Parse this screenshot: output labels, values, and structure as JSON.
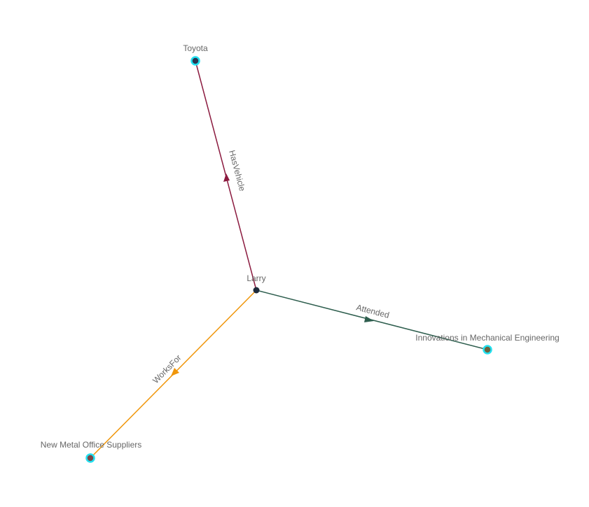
{
  "graph": {
    "nodes": [
      {
        "id": "larry",
        "label": "Larry",
        "fill": "#1e2a3a",
        "ring": null
      },
      {
        "id": "toyota",
        "label": "Toyota",
        "fill": "#2a3550",
        "ring": "#22e0f0"
      },
      {
        "id": "innovations",
        "label": "Innovations in Mechanical Engineering",
        "fill": "#6b6440",
        "ring": "#22e0f0"
      },
      {
        "id": "newmetal",
        "label": "New Metal Office Suppliers",
        "fill": "#7a4848",
        "ring": "#22e0f0"
      }
    ],
    "edges": [
      {
        "source": "larry",
        "target": "toyota",
        "label": "HasVehicle",
        "color": "#8b1a3f"
      },
      {
        "source": "larry",
        "target": "innovations",
        "label": "Attended",
        "color": "#2e5e4e"
      },
      {
        "source": "larry",
        "target": "newmetal",
        "label": "WorksFor",
        "color": "#f0960a"
      }
    ]
  }
}
